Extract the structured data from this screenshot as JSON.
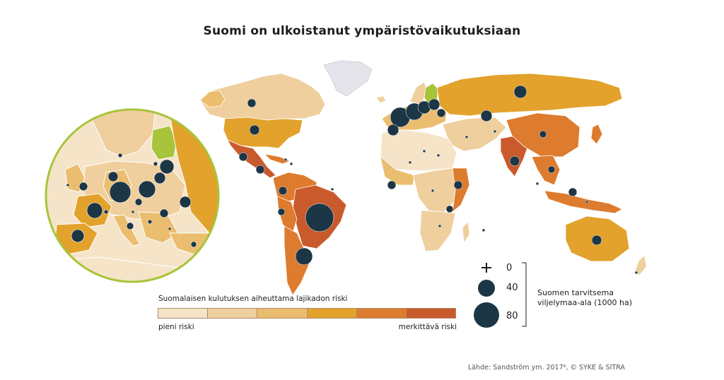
{
  "title": "Suomi on ulkoistanut ympäristövaikutuksiaan",
  "risk_scale": {
    "title": "Suomalaisen kulutuksen aiheuttama lajikadon riski",
    "low_label": "pieni riski",
    "high_label": "merkittävä riski",
    "colors": [
      "#f5e4c8",
      "#efcf9d",
      "#ebbd6e",
      "#e2a22c",
      "#dd7b2e",
      "#c95a2c"
    ]
  },
  "size_legend": {
    "values": [
      "0",
      "40",
      "80"
    ],
    "description_line1": "Suomen tarvitsema",
    "description_line2": "viljelymaa-ala (1000 ha)"
  },
  "source": "Lähde: Sandström ym. 2017⁶, © SYKE & SITRA",
  "colors": {
    "finland": "#a8c43a",
    "bubble": "#1c3646",
    "inset_ring": "#a8c43a",
    "greenland": "#e4e4ea"
  }
}
